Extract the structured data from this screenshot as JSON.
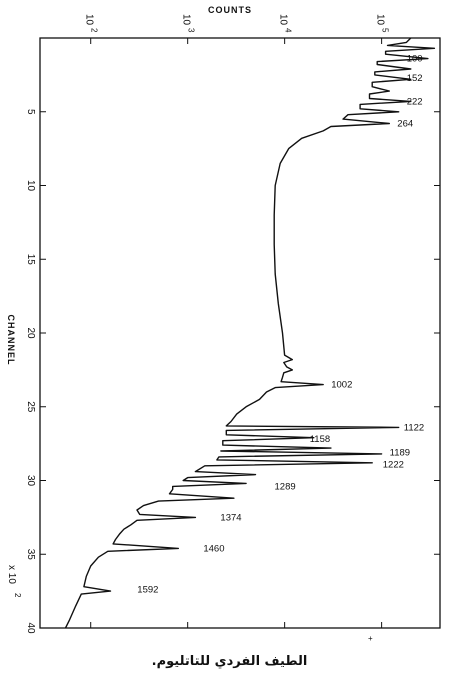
{
  "chart_data": {
    "type": "line",
    "orientation": "rotated: channel axis vertical (increasing downward), counts axis horizontal (log scale, increasing rightward)",
    "counts_axis_title": "COUNTS",
    "channel_axis_title": "CHANNEL",
    "channel_multiplier_label": "x 10",
    "channel_multiplier_exponent": "2",
    "counts_scale": "log",
    "counts_range": [
      30,
      400000
    ],
    "channel_range": [
      0,
      40
    ],
    "channel_ticks": [
      "5",
      "10",
      "15",
      "20",
      "25",
      "30",
      "35",
      "40"
    ],
    "counts_ticks": [
      {
        "base": "10",
        "exp": "2",
        "value": 100
      },
      {
        "base": "10",
        "exp": "3",
        "value": 1000
      },
      {
        "base": "10",
        "exp": "4",
        "value": 10000
      },
      {
        "base": "10",
        "exp": "5",
        "value": 100000
      }
    ],
    "peak_labels": [
      {
        "text": "100",
        "channel": 1.4,
        "counts": 150000
      },
      {
        "text": "152",
        "channel": 2.7,
        "counts": 150000
      },
      {
        "text": "222",
        "channel": 4.3,
        "counts": 150000
      },
      {
        "text": "264",
        "channel": 5.8,
        "counts": 120000
      },
      {
        "text": "1002",
        "channel": 23.5,
        "counts": 25000
      },
      {
        "text": "1122",
        "channel": 26.4,
        "counts": 140000
      },
      {
        "text": "1158",
        "channel": 27.2,
        "counts": 15000
      },
      {
        "text": "1189",
        "channel": 28.1,
        "counts": 100000
      },
      {
        "text": "1222",
        "channel": 28.9,
        "counts": 85000
      },
      {
        "text": "1289",
        "channel": 30.4,
        "counts": 6500
      },
      {
        "text": "1374",
        "channel": 32.5,
        "counts": 1800
      },
      {
        "text": "1460",
        "channel": 34.6,
        "counts": 1200
      },
      {
        "text": "1592",
        "channel": 37.4,
        "counts": 250
      }
    ],
    "series": [
      {
        "points": [
          [
            0.0,
            200000
          ],
          [
            0.3,
            180000
          ],
          [
            0.5,
            115000
          ],
          [
            0.7,
            350000
          ],
          [
            0.9,
            110000
          ],
          [
            1.1,
            110000
          ],
          [
            1.4,
            300000
          ],
          [
            1.6,
            90000
          ],
          [
            1.8,
            90000
          ],
          [
            2.1,
            200000
          ],
          [
            2.3,
            85000
          ],
          [
            2.5,
            85000
          ],
          [
            2.8,
            200000
          ],
          [
            3.0,
            80000
          ],
          [
            3.3,
            80000
          ],
          [
            3.6,
            120000
          ],
          [
            3.8,
            75000
          ],
          [
            4.1,
            75000
          ],
          [
            4.3,
            200000
          ],
          [
            4.5,
            60000
          ],
          [
            4.8,
            60000
          ],
          [
            5.0,
            150000
          ],
          [
            5.2,
            45000
          ],
          [
            5.5,
            40000
          ],
          [
            5.8,
            120000
          ],
          [
            6.0,
            30000
          ],
          [
            6.3,
            25000
          ],
          [
            6.8,
            15000
          ],
          [
            7.5,
            11000
          ],
          [
            8.5,
            9000
          ],
          [
            10.0,
            8000
          ],
          [
            12.0,
            7800
          ],
          [
            14.0,
            7800
          ],
          [
            16.0,
            8000
          ],
          [
            18.0,
            8600
          ],
          [
            20.0,
            9500
          ],
          [
            21.5,
            10000
          ],
          [
            21.8,
            12000
          ],
          [
            22.0,
            9800
          ],
          [
            22.3,
            10500
          ],
          [
            22.5,
            12000
          ],
          [
            22.7,
            9800
          ],
          [
            23.0,
            9500
          ],
          [
            23.3,
            9200
          ],
          [
            23.5,
            25000
          ],
          [
            23.7,
            8000
          ],
          [
            24.0,
            6500
          ],
          [
            24.5,
            5500
          ],
          [
            25.0,
            4000
          ],
          [
            25.5,
            3200
          ],
          [
            26.0,
            2800
          ],
          [
            26.3,
            2500
          ],
          [
            26.4,
            150000
          ],
          [
            26.6,
            2500
          ],
          [
            26.9,
            2500
          ],
          [
            27.1,
            20000
          ],
          [
            27.3,
            2300
          ],
          [
            27.6,
            2300
          ],
          [
            27.8,
            30000
          ],
          [
            28.0,
            2200
          ],
          [
            28.2,
            100000
          ],
          [
            28.4,
            2100
          ],
          [
            28.6,
            2000
          ],
          [
            28.8,
            80000
          ],
          [
            29.0,
            1500
          ],
          [
            29.4,
            1200
          ],
          [
            29.6,
            5000
          ],
          [
            29.8,
            1000
          ],
          [
            30.0,
            900
          ],
          [
            30.2,
            4000
          ],
          [
            30.4,
            700
          ],
          [
            30.6,
            700
          ],
          [
            30.9,
            650
          ],
          [
            31.2,
            3000
          ],
          [
            31.4,
            500
          ],
          [
            31.7,
            350
          ],
          [
            32.0,
            300
          ],
          [
            32.3,
            320
          ],
          [
            32.5,
            1200
          ],
          [
            32.7,
            300
          ],
          [
            33.0,
            260
          ],
          [
            33.3,
            220
          ],
          [
            33.6,
            200
          ],
          [
            34.0,
            180
          ],
          [
            34.3,
            170
          ],
          [
            34.6,
            800
          ],
          [
            34.8,
            150
          ],
          [
            35.2,
            120
          ],
          [
            35.8,
            100
          ],
          [
            36.5,
            90
          ],
          [
            37.2,
            85
          ],
          [
            37.5,
            160
          ],
          [
            37.7,
            80
          ],
          [
            38.5,
            70
          ],
          [
            39.5,
            60
          ],
          [
            40.0,
            55
          ]
        ]
      }
    ]
  },
  "caption": "الطيف الفردي للتاتليوم."
}
